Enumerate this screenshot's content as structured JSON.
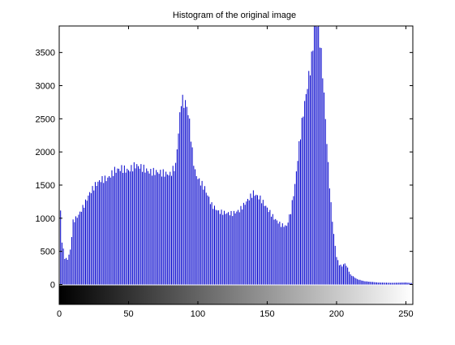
{
  "chart_data": {
    "type": "bar",
    "title": "Histogram of the original image",
    "xlabel": "",
    "ylabel": "",
    "xlim": [
      0,
      255
    ],
    "ylim": [
      -300,
      3900
    ],
    "xticks": [
      0,
      50,
      100,
      150,
      200,
      250
    ],
    "yticks": [
      0,
      500,
      1000,
      1500,
      2000,
      2500,
      3000,
      3500
    ],
    "grid": false,
    "bar_color": "#0000cc",
    "colorbar": {
      "range": [
        0,
        255
      ],
      "from_color": "#000000",
      "to_color": "#ffffff"
    },
    "anchors": [
      [
        0,
        1550
      ],
      [
        2,
        650
      ],
      [
        4,
        400
      ],
      [
        6,
        380
      ],
      [
        8,
        520
      ],
      [
        10,
        950
      ],
      [
        14,
        1050
      ],
      [
        18,
        1200
      ],
      [
        22,
        1380
      ],
      [
        26,
        1500
      ],
      [
        30,
        1580
      ],
      [
        35,
        1600
      ],
      [
        40,
        1720
      ],
      [
        45,
        1750
      ],
      [
        50,
        1720
      ],
      [
        55,
        1800
      ],
      [
        60,
        1760
      ],
      [
        65,
        1700
      ],
      [
        70,
        1700
      ],
      [
        75,
        1680
      ],
      [
        80,
        1660
      ],
      [
        84,
        1800
      ],
      [
        86,
        2300
      ],
      [
        88,
        2780
      ],
      [
        90,
        2750
      ],
      [
        92,
        2700
      ],
      [
        94,
        2450
      ],
      [
        96,
        2000
      ],
      [
        98,
        1700
      ],
      [
        100,
        1600
      ],
      [
        105,
        1450
      ],
      [
        110,
        1200
      ],
      [
        115,
        1100
      ],
      [
        120,
        1080
      ],
      [
        125,
        1070
      ],
      [
        130,
        1120
      ],
      [
        135,
        1250
      ],
      [
        140,
        1380
      ],
      [
        145,
        1300
      ],
      [
        150,
        1150
      ],
      [
        155,
        1000
      ],
      [
        160,
        900
      ],
      [
        164,
        880
      ],
      [
        167,
        1100
      ],
      [
        170,
        1500
      ],
      [
        173,
        2100
      ],
      [
        176,
        2600
      ],
      [
        179,
        3000
      ],
      [
        182,
        3400
      ],
      [
        184,
        3850
      ],
      [
        186,
        3950
      ],
      [
        188,
        3700
      ],
      [
        190,
        3200
      ],
      [
        192,
        2500
      ],
      [
        194,
        1800
      ],
      [
        196,
        1200
      ],
      [
        198,
        750
      ],
      [
        200,
        420
      ],
      [
        202,
        300
      ],
      [
        204,
        280
      ],
      [
        206,
        320
      ],
      [
        208,
        250
      ],
      [
        210,
        150
      ],
      [
        215,
        80
      ],
      [
        220,
        50
      ],
      [
        230,
        30
      ],
      [
        240,
        25
      ],
      [
        250,
        30
      ],
      [
        255,
        20
      ]
    ]
  }
}
